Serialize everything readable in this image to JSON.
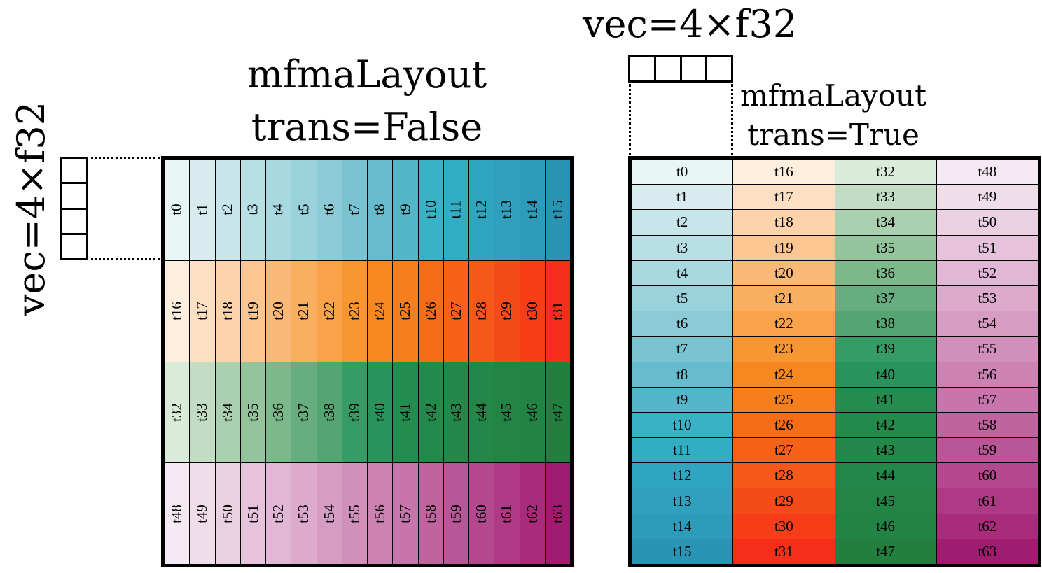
{
  "left": {
    "title_line1": "mfmaLayout",
    "title_line2": "trans=False",
    "vec_label": "vec=4×f32"
  },
  "right": {
    "title_line1": "mfmaLayout",
    "title_line2": "trans=True",
    "vec_label": "vec=4×f32"
  },
  "threads": [
    "t0",
    "t1",
    "t2",
    "t3",
    "t4",
    "t5",
    "t6",
    "t7",
    "t8",
    "t9",
    "t10",
    "t11",
    "t12",
    "t13",
    "t14",
    "t15",
    "t16",
    "t17",
    "t18",
    "t19",
    "t20",
    "t21",
    "t22",
    "t23",
    "t24",
    "t25",
    "t26",
    "t27",
    "t28",
    "t29",
    "t30",
    "t31",
    "t32",
    "t33",
    "t34",
    "t35",
    "t36",
    "t37",
    "t38",
    "t39",
    "t40",
    "t41",
    "t42",
    "t43",
    "t44",
    "t45",
    "t46",
    "t47",
    "t48",
    "t49",
    "t50",
    "t51",
    "t52",
    "t53",
    "t54",
    "t55",
    "t56",
    "t57",
    "t58",
    "t59",
    "t60",
    "t61",
    "t62",
    "t63"
  ],
  "colors": {
    "blue": [
      "#e8f6f6",
      "#d8ecef",
      "#c8e5e9",
      "#b8dfe4",
      "#a9d9e0",
      "#9ad2dc",
      "#8ccbd6",
      "#7ac4d1",
      "#66bccc",
      "#55b6c9",
      "#3ab2c6",
      "#33adc3",
      "#30a5c0",
      "#2fa0bd",
      "#2d9cba",
      "#2a94b5"
    ],
    "orange": [
      "#fdeede",
      "#fde0c4",
      "#fcd3ab",
      "#fcc692",
      "#fbb978",
      "#f9ae60",
      "#f8a34a",
      "#f89632",
      "#f58920",
      "#f47f1c",
      "#f56d18",
      "#f66318",
      "#f55818",
      "#f54b18",
      "#f53d18",
      "#f42e18"
    ],
    "green": [
      "#dbebda",
      "#c3dcc4",
      "#abd0b0",
      "#94c49c",
      "#7cb98a",
      "#68ad7f",
      "#54a572",
      "#379b66",
      "#28935a",
      "#258c4f",
      "#248a4c",
      "#23884a",
      "#228748",
      "#228546",
      "#228444",
      "#227f40"
    ],
    "pink": [
      "#f5eaf3",
      "#efdde9",
      "#ebd0e1",
      "#e6c3db",
      "#e2b6d5",
      "#dcaacb",
      "#d79cc3",
      "#d18fbb",
      "#cd82b4",
      "#c775ac",
      "#c064a0",
      "#b95697",
      "#b4498f",
      "#ae3a85",
      "#a92b7c",
      "#a01c70"
    ]
  }
}
